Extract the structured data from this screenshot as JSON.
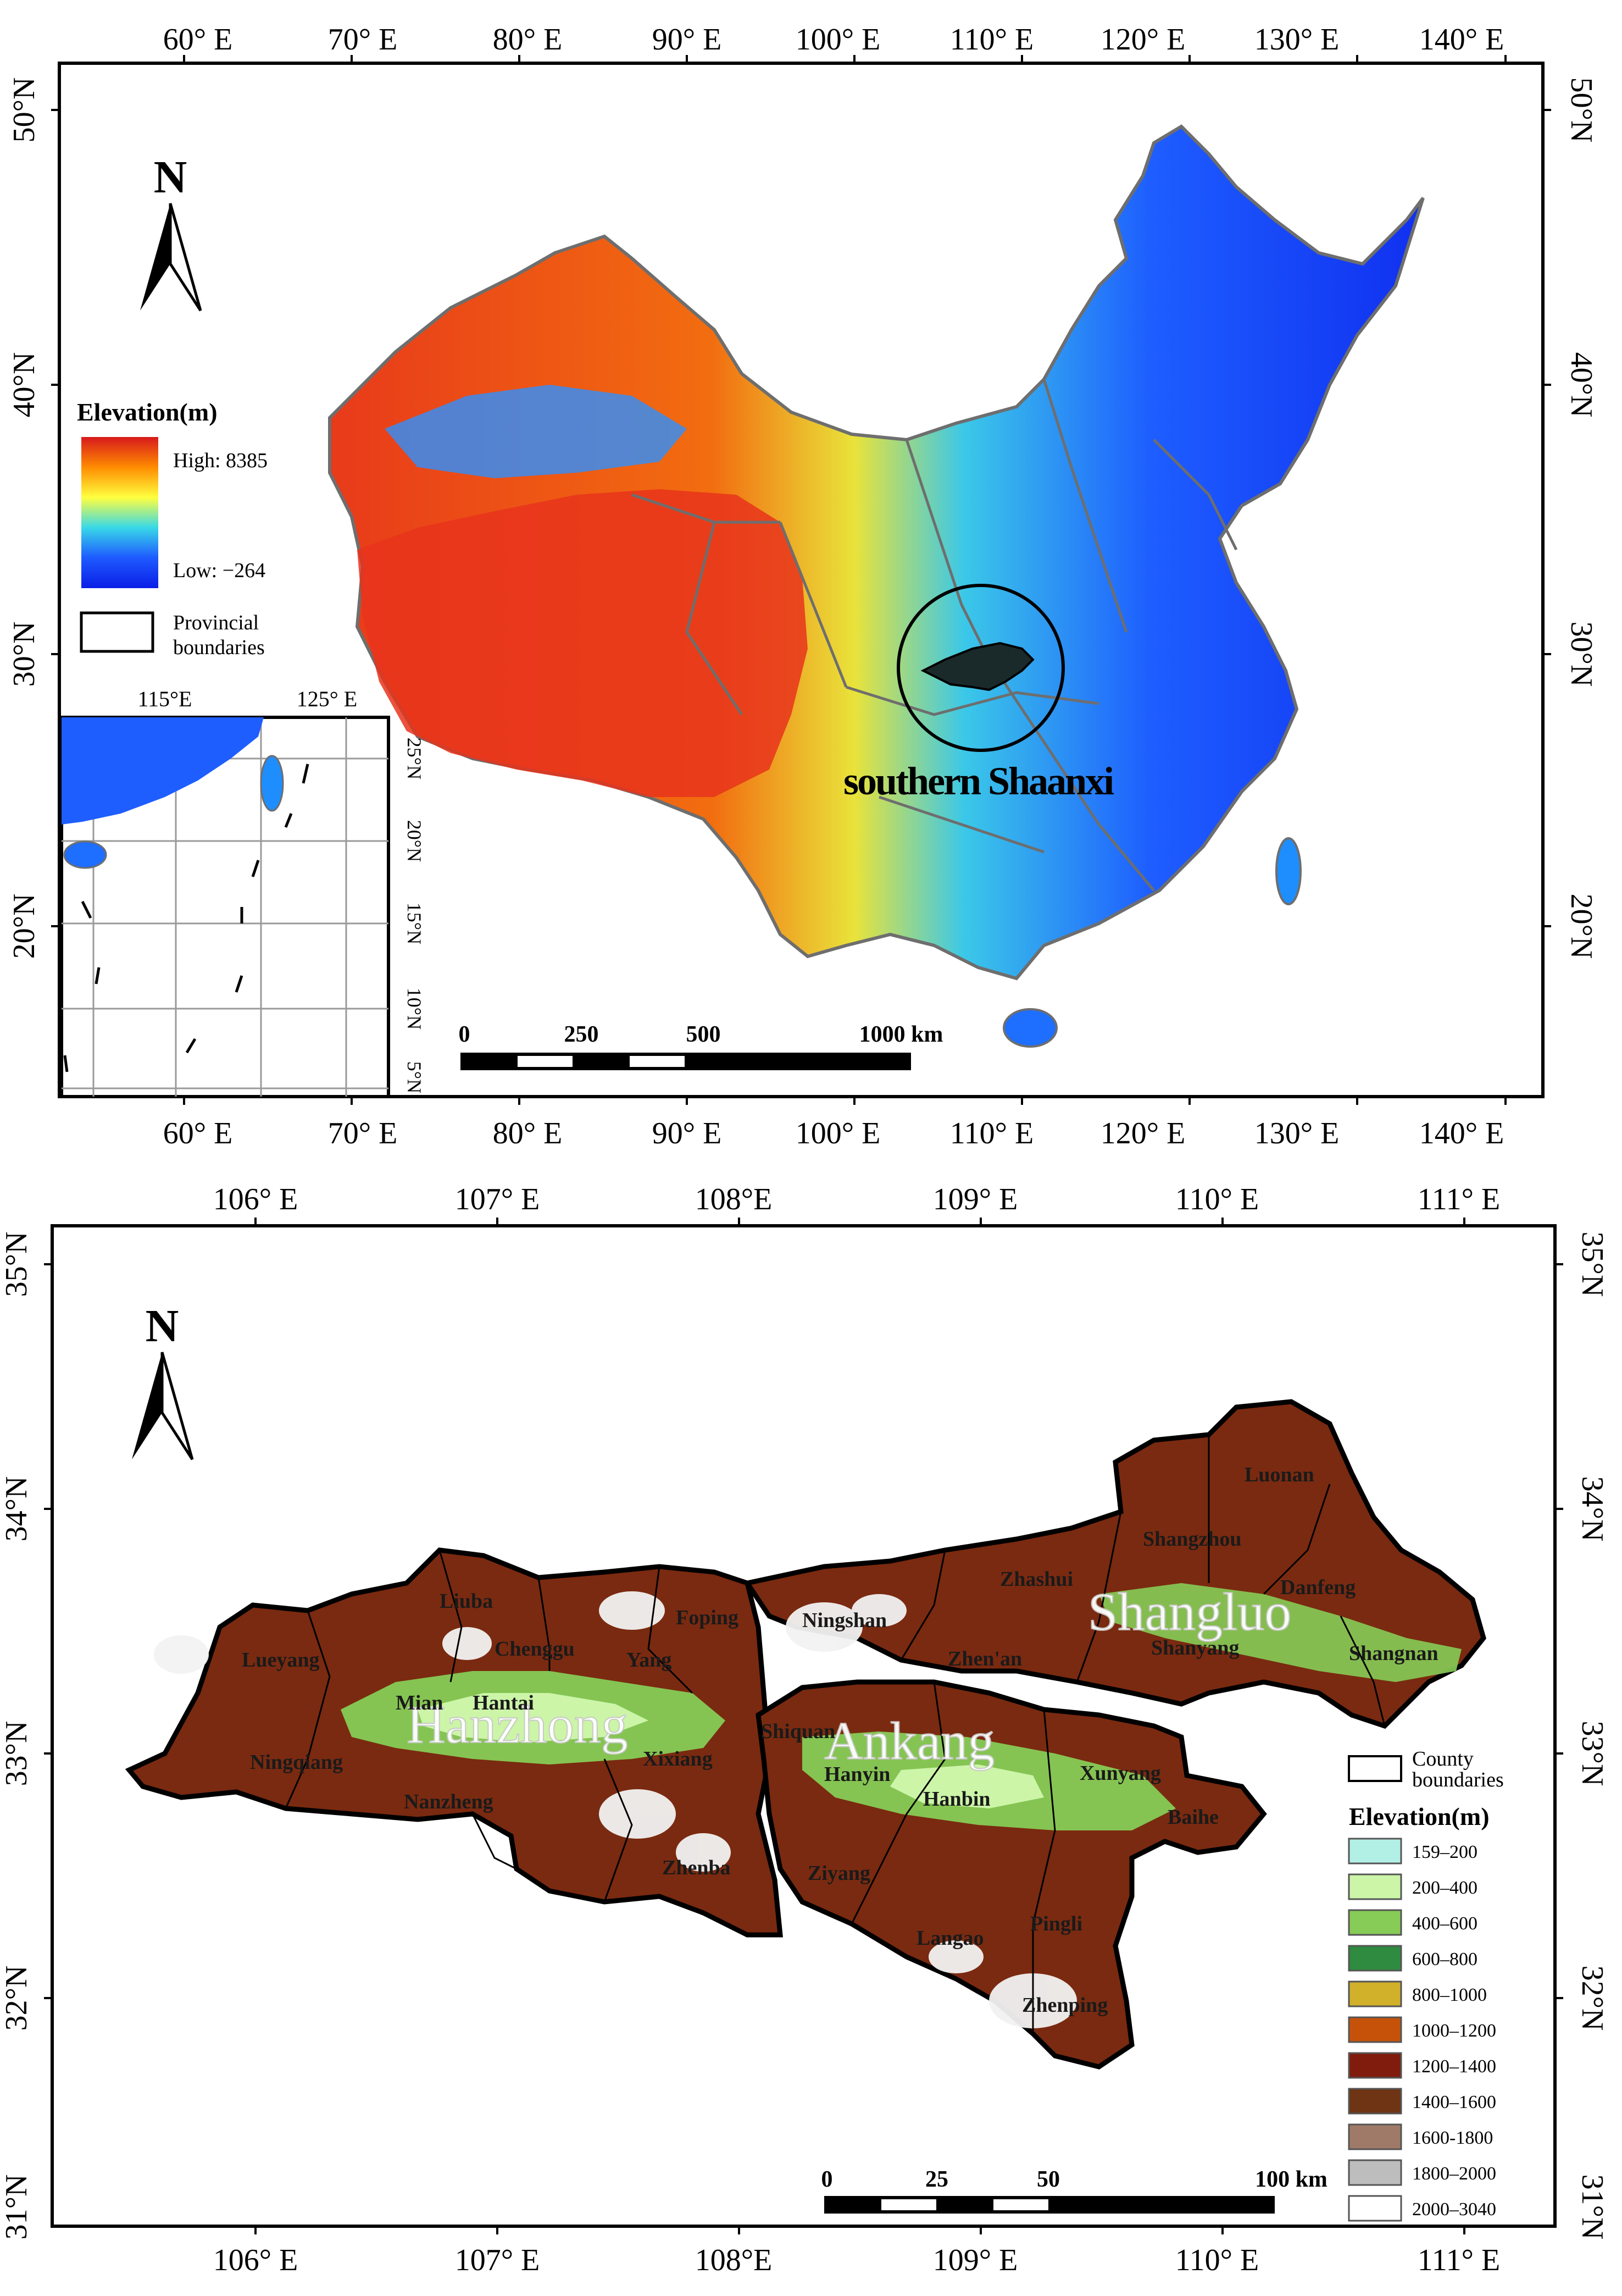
{
  "top_map": {
    "lon_labels": [
      "60° E",
      "70° E",
      "80° E",
      "90° E",
      "100° E",
      "110° E",
      "120° E",
      "130° E",
      "140° E"
    ],
    "lat_labels": [
      "50°N",
      "40°N",
      "30°N",
      "20°N"
    ],
    "north": "N",
    "legend": {
      "title": "Elevation(m)",
      "high": "High: 8385",
      "low": "Low: −264",
      "boundary_label_1": "Provincial",
      "boundary_label_2": "boundaries",
      "ramp_colors": [
        "#d7191c",
        "#ff8c00",
        "#ffff3f",
        "#38d8e8",
        "#1e5aff",
        "#0a1ee6"
      ]
    },
    "study_area_label": "southern Shaanxi",
    "inset": {
      "lon_labels": [
        "115°E",
        "125° E"
      ],
      "lat_labels": [
        "25°N",
        "20°N",
        "15°N",
        "10°N",
        "5°N"
      ]
    },
    "scale_bar": {
      "labels": [
        "0",
        "250",
        "500",
        "1000 km"
      ]
    }
  },
  "bottom_map": {
    "lon_labels": [
      "106° E",
      "107° E",
      "108°E",
      "109° E",
      "110° E",
      "111° E"
    ],
    "lat_labels": [
      "35°N",
      "34°N",
      "33°N",
      "32°N",
      "31°N"
    ],
    "north": "N",
    "city_labels": [
      "Hanzhong",
      "Ankang",
      "Shangluo"
    ],
    "county_labels": [
      "Luonan",
      "Shangzhou",
      "Danfeng",
      "Zhashui",
      "Shanyang",
      "Shangnan",
      "Zhen'an",
      "Ningshan",
      "Foping",
      "Liuba",
      "Chenggu",
      "Yang",
      "Lueyang",
      "Mian",
      "Hantai",
      "Xixiang",
      "Ningqiang",
      "Nanzheng",
      "Zhenba",
      "Shiquan",
      "Hanyin",
      "Hanbin",
      "Xunyang",
      "Baihe",
      "Ziyang",
      "Langao",
      "Pingli",
      "Zhenping"
    ],
    "legend": {
      "county_label_1": "County",
      "county_label_2": "boundaries",
      "title": "Elevation(m)",
      "classes": [
        {
          "label": "159–200",
          "color": "#b2f0e6"
        },
        {
          "label": "200–400",
          "color": "#ccf5a8"
        },
        {
          "label": "400–600",
          "color": "#86cc56"
        },
        {
          "label": "600–800",
          "color": "#2e8b3f"
        },
        {
          "label": "800–1000",
          "color": "#d1b02a"
        },
        {
          "label": "1000–1200",
          "color": "#c6520a"
        },
        {
          "label": "1200–1400",
          "color": "#801c0d"
        },
        {
          "label": "1400–1600",
          "color": "#6e3413"
        },
        {
          "label": "1600-1800",
          "color": "#a07a68"
        },
        {
          "label": "1800–2000",
          "color": "#bdbdbd"
        },
        {
          "label": "2000–3040",
          "color": "#ffffff"
        }
      ]
    },
    "scale_bar": {
      "labels": [
        "0",
        "25",
        "50",
        "100 km"
      ]
    }
  }
}
